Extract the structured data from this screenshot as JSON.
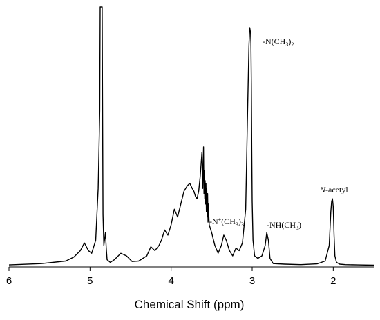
{
  "chart_data": {
    "type": "line",
    "title": "",
    "xlabel": "Chemical Shift (ppm)",
    "ylabel": "",
    "x_reversed": true,
    "xlim": [
      6,
      1.5
    ],
    "ylim": [
      0,
      100
    ],
    "x_ticks": [
      6,
      5,
      4,
      3,
      2
    ],
    "x_tick_labels": [
      "6",
      "5",
      "4",
      "3",
      "2"
    ],
    "grid": false,
    "legend": "none",
    "series": [
      {
        "color": "#000000",
        "x": [
          6.0,
          5.6,
          5.3,
          5.2,
          5.12,
          5.07,
          5.02,
          4.98,
          4.93,
          4.9,
          4.88,
          4.875,
          4.87,
          4.86,
          4.855,
          4.85,
          4.845,
          4.84,
          4.83,
          4.81,
          4.8,
          4.79,
          4.75,
          4.7,
          4.62,
          4.55,
          4.48,
          4.4,
          4.3,
          4.25,
          4.2,
          4.15,
          4.12,
          4.08,
          4.04,
          4.0,
          3.96,
          3.92,
          3.88,
          3.84,
          3.8,
          3.77,
          3.74,
          3.72,
          3.7,
          3.68,
          3.66,
          3.64,
          3.62,
          3.61,
          3.6,
          3.595,
          3.59,
          3.585,
          3.58,
          3.575,
          3.57,
          3.565,
          3.56,
          3.555,
          3.55,
          3.545,
          3.54,
          3.53,
          3.5,
          3.46,
          3.42,
          3.38,
          3.35,
          3.32,
          3.28,
          3.24,
          3.2,
          3.16,
          3.12,
          3.08,
          3.06,
          3.04,
          3.03,
          3.02,
          3.015,
          3.01,
          3.005,
          3.0,
          2.99,
          2.97,
          2.93,
          2.88,
          2.84,
          2.82,
          2.8,
          2.78,
          2.74,
          2.6,
          2.4,
          2.2,
          2.1,
          2.05,
          2.03,
          2.02,
          2.01,
          2.0,
          1.99,
          1.98,
          1.96,
          1.92,
          1.85,
          1.7,
          1.5
        ],
        "y": [
          0.5,
          1,
          2,
          3.5,
          6,
          9,
          6,
          5,
          10,
          30,
          60,
          100,
          100,
          100,
          100,
          100,
          60,
          20,
          8,
          13,
          7,
          2.5,
          1.5,
          2.5,
          5,
          4,
          1.8,
          2,
          4,
          7.5,
          6,
          8,
          10,
          14,
          12,
          16,
          22,
          19,
          24,
          29,
          31,
          32,
          30,
          29,
          27,
          26,
          29,
          35,
          44,
          30,
          46,
          28,
          37,
          26,
          33,
          24,
          32,
          21,
          30,
          19,
          28,
          17,
          24,
          16,
          13,
          8,
          5,
          8,
          12,
          10,
          6,
          4,
          7,
          6,
          9,
          22,
          55,
          85,
          92,
          90,
          86,
          70,
          45,
          25,
          10,
          4,
          3,
          4,
          8,
          13,
          10,
          3,
          1,
          0.8,
          0.6,
          0.9,
          2,
          8,
          21,
          25,
          26,
          23,
          12,
          4,
          1.5,
          0.8,
          0.6,
          0.5,
          0.4
        ]
      }
    ],
    "annotations": [
      {
        "text": "-N(CH",
        "sub": "3",
        "tail": ")",
        "sub2": "2"
      },
      {
        "text": "-N",
        "sup": "+",
        "mid": "(CH",
        "sub": "3",
        "tail": ")",
        "sub2": "3"
      },
      {
        "text": "-NH(CH",
        "sub": "3",
        "tail": ")"
      },
      {
        "italic": "N",
        "text": "-acetyl"
      }
    ]
  }
}
